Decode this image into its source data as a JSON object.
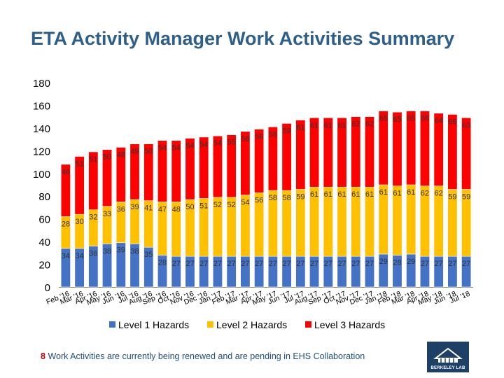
{
  "title": "ETA Activity Manager Work Activities Summary",
  "footnote": {
    "count": "8",
    "text": "Work Activities are currently being renewed and are pending in EHS Collaboration"
  },
  "logo": {
    "name": "berkeley-lab-logo",
    "caption": "BERKELEY LAB"
  },
  "chart_data": {
    "type": "bar",
    "stacked": true,
    "categories": [
      "Feb '16",
      "Mar '16",
      "Apr '16",
      "May '16",
      "Jun '16",
      "Jul '16",
      "Aug '16",
      "Sep '16",
      "Oct '16",
      "Nov '16",
      "Dec '16",
      "Jan '17",
      "Feb '17",
      "Mar '17",
      "Apr '17",
      "May '17",
      "Jun '17",
      "Jul '17",
      "Aug '17",
      "Sep '17",
      "Oct '17",
      "Nov '17",
      "Dec '17",
      "Jan '18",
      "Feb '18",
      "Mar '18",
      "Apr '18",
      "May '18",
      "Jun '18",
      "Jul '18"
    ],
    "series": [
      {
        "name": "Level 1 Hazards",
        "color": "#4472c4",
        "values": [
          34,
          34,
          36,
          38,
          39,
          38,
          35,
          28,
          27,
          27,
          27,
          27,
          27,
          27,
          27,
          27,
          27,
          27,
          27,
          27,
          27,
          27,
          27,
          29,
          28,
          29,
          27,
          27,
          27,
          27
        ]
      },
      {
        "name": "Level 2 Hazards",
        "color": "#ffc000",
        "values": [
          28,
          30,
          32,
          33,
          36,
          39,
          41,
          47,
          48,
          50,
          51,
          52,
          52,
          54,
          56,
          58,
          58,
          59,
          61,
          61,
          61,
          61,
          61,
          61,
          61,
          61,
          62,
          62,
          59,
          59
        ]
      },
      {
        "name": "Level 3 Hazards",
        "color": "#ff0000",
        "values": [
          46,
          51,
          51,
          50,
          48,
          49,
          50,
          54,
          54,
          54,
          54,
          54,
          55,
          56,
          56,
          56,
          59,
          61,
          61,
          61,
          61,
          62,
          62,
          65,
          65,
          65,
          66,
          64,
          66,
          63
        ]
      }
    ],
    "yticks": [
      0,
      20,
      40,
      60,
      80,
      100,
      120,
      140,
      160,
      180
    ],
    "ylim": [
      0,
      180
    ],
    "grid": false,
    "legend": "bottom"
  }
}
